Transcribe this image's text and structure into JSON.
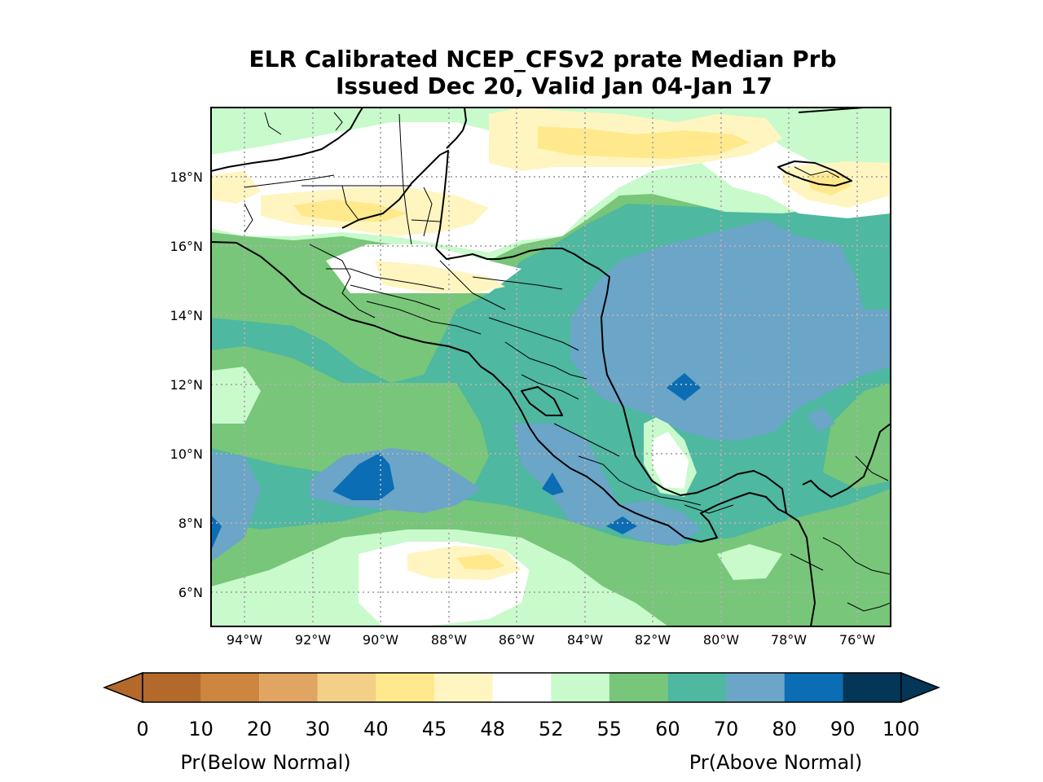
{
  "title": {
    "line1": "ELR Calibrated NCEP_CFSv2 prate Median Prb",
    "line2": "Issued Dec 20, Valid Jan 04-Jan 17"
  },
  "map": {
    "lon_range": [
      -95.2,
      -75.2
    ],
    "lat_range": [
      5.0,
      20.0
    ],
    "lat_ticks": [
      {
        "value": 18,
        "label": "18°N"
      },
      {
        "value": 16,
        "label": "16°N"
      },
      {
        "value": 14,
        "label": "14°N"
      },
      {
        "value": 12,
        "label": "12°N"
      },
      {
        "value": 10,
        "label": "10°N"
      },
      {
        "value": 8,
        "label": "8°N"
      },
      {
        "value": 6,
        "label": "6°N"
      }
    ],
    "lon_ticks": [
      {
        "value": -94,
        "label": "94°W"
      },
      {
        "value": -92,
        "label": "92°W"
      },
      {
        "value": -90,
        "label": "90°W"
      },
      {
        "value": -88,
        "label": "88°W"
      },
      {
        "value": -86,
        "label": "86°W"
      },
      {
        "value": -84,
        "label": "84°W"
      },
      {
        "value": -82,
        "label": "82°W"
      },
      {
        "value": -80,
        "label": "80°W"
      },
      {
        "value": -78,
        "label": "78°W"
      },
      {
        "value": -76,
        "label": "76°W"
      }
    ],
    "gridlines": true
  },
  "colorbar": {
    "bins": [
      {
        "from": 0,
        "to": 10,
        "color": "#b3692b"
      },
      {
        "from": 10,
        "to": 20,
        "color": "#cd853f"
      },
      {
        "from": 20,
        "to": 30,
        "color": "#e0a562"
      },
      {
        "from": 30,
        "to": 40,
        "color": "#f4cf87"
      },
      {
        "from": 40,
        "to": 45,
        "color": "#ffe98c"
      },
      {
        "from": 45,
        "to": 48,
        "color": "#fff5c0"
      },
      {
        "from": 48,
        "to": 52,
        "color": "#ffffff"
      },
      {
        "from": 52,
        "to": 55,
        "color": "#c8facc"
      },
      {
        "from": 55,
        "to": 60,
        "color": "#78c679"
      },
      {
        "from": 60,
        "to": 70,
        "color": "#4eb8a0"
      },
      {
        "from": 70,
        "to": 80,
        "color": "#6ba5c8"
      },
      {
        "from": 80,
        "to": 90,
        "color": "#0b6db3"
      },
      {
        "from": 90,
        "to": 100,
        "color": "#033657"
      }
    ],
    "tick_labels": [
      "0",
      "10",
      "20",
      "30",
      "40",
      "45",
      "48",
      "52",
      "55",
      "60",
      "70",
      "80",
      "90",
      "100"
    ],
    "extend_low_color": "#b3692b",
    "extend_high_color": "#033657",
    "label_below": "Pr(Below Normal)",
    "label_above": "Pr(Above Normal)"
  }
}
